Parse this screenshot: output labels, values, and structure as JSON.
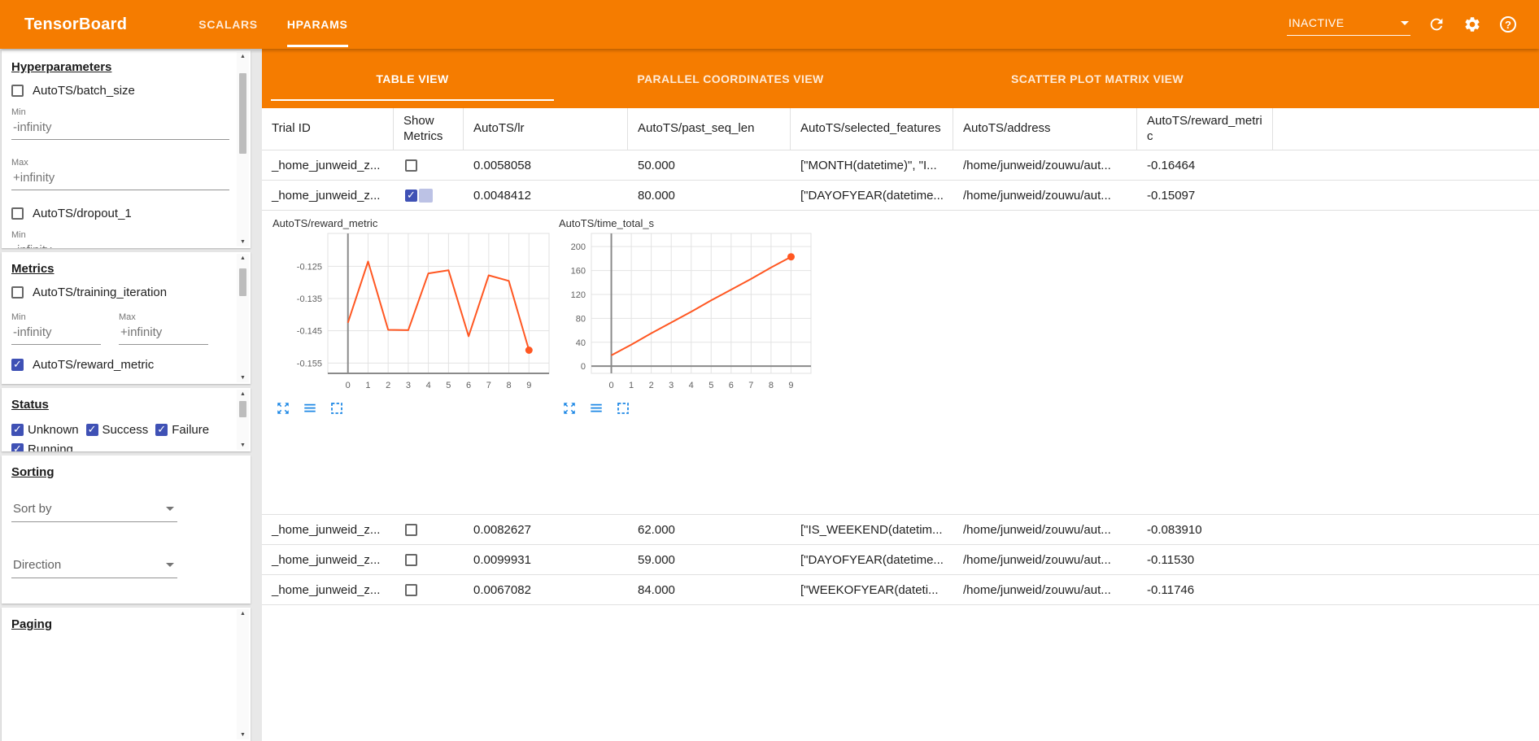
{
  "header": {
    "title": "TensorBoard",
    "nav_tabs": [
      {
        "label": "SCALARS",
        "active": false
      },
      {
        "label": "HPARAMS",
        "active": true
      }
    ],
    "status_select": {
      "value": "INACTIVE"
    }
  },
  "sidebar": {
    "labels": {
      "min": "Min",
      "max": "Max"
    },
    "hyperparameters": {
      "title": "Hyperparameters",
      "items": [
        {
          "label": "AutoTS/batch_size",
          "checked": false,
          "min": "-infinity",
          "max": "+infinity"
        },
        {
          "label": "AutoTS/dropout_1",
          "checked": false,
          "min": "-infinity"
        }
      ]
    },
    "metrics": {
      "title": "Metrics",
      "items": [
        {
          "label": "AutoTS/training_iteration",
          "checked": false,
          "min": "-infinity",
          "max": "+infinity"
        },
        {
          "label": "AutoTS/reward_metric",
          "checked": true
        }
      ]
    },
    "status": {
      "title": "Status",
      "items": [
        {
          "label": "Unknown",
          "checked": true
        },
        {
          "label": "Success",
          "checked": true
        },
        {
          "label": "Failure",
          "checked": true
        },
        {
          "label": "Running",
          "checked": true
        }
      ]
    },
    "sorting": {
      "title": "Sorting",
      "sort_by_label": "Sort by",
      "direction_label": "Direction"
    },
    "paging": {
      "title": "Paging"
    }
  },
  "main": {
    "view_tabs": [
      {
        "label": "TABLE VIEW",
        "active": true
      },
      {
        "label": "PARALLEL COORDINATES VIEW",
        "active": false
      },
      {
        "label": "SCATTER PLOT MATRIX VIEW",
        "active": false
      }
    ],
    "table": {
      "columns": [
        {
          "label": "Trial ID"
        },
        {
          "label": "Show Metrics"
        },
        {
          "label": "AutoTS/lr"
        },
        {
          "label": "AutoTS/past_seq_len"
        },
        {
          "label": "AutoTS/selected_features"
        },
        {
          "label": "AutoTS/address"
        },
        {
          "label": "AutoTS/reward_metric"
        }
      ],
      "rows": [
        {
          "trial_id": "_home_junweid_z...",
          "show_metrics": false,
          "lr": "0.0058058",
          "past_seq_len": "50.000",
          "selected_features": "[\"MONTH(datetime)\", \"I...",
          "address": "/home/junweid/zouwu/aut...",
          "reward_metric": "-0.16464"
        },
        {
          "trial_id": "_home_junweid_z...",
          "show_metrics": true,
          "lr": "0.0048412",
          "past_seq_len": "80.000",
          "selected_features": "[\"DAYOFYEAR(datetime...",
          "address": "/home/junweid/zouwu/aut...",
          "reward_metric": "-0.15097"
        },
        {
          "trial_id": "_home_junweid_z...",
          "show_metrics": false,
          "lr": "0.0082627",
          "past_seq_len": "62.000",
          "selected_features": "[\"IS_WEEKEND(datetim...",
          "address": "/home/junweid/zouwu/aut...",
          "reward_metric": "-0.083910"
        },
        {
          "trial_id": "_home_junweid_z...",
          "show_metrics": false,
          "lr": "0.0099931",
          "past_seq_len": "59.000",
          "selected_features": "[\"DAYOFYEAR(datetime...",
          "address": "/home/junweid/zouwu/aut...",
          "reward_metric": "-0.11530"
        },
        {
          "trial_id": "_home_junweid_z...",
          "show_metrics": false,
          "lr": "0.0067082",
          "past_seq_len": "84.000",
          "selected_features": "[\"WEEKOFYEAR(dateti...",
          "address": "/home/junweid/zouwu/aut...",
          "reward_metric": "-0.11746"
        }
      ]
    }
  },
  "colors": {
    "brand_orange": "#f57c00",
    "accent_blue": "#3f51b5",
    "chart_line": "#ff5722",
    "icon_blue": "#1e88e5"
  },
  "chart_data": [
    {
      "type": "line",
      "title": "AutoTS/reward_metric",
      "x": [
        0,
        1,
        2,
        3,
        4,
        5,
        6,
        7,
        8,
        9
      ],
      "values": [
        -0.1425,
        -0.1235,
        -0.1447,
        -0.1448,
        -0.1272,
        -0.1262,
        -0.1467,
        -0.1278,
        -0.1295,
        -0.151
      ],
      "xticks": [
        0,
        1,
        2,
        3,
        4,
        5,
        6,
        7,
        8,
        9
      ],
      "ytick_values": [
        -0.125,
        -0.135,
        -0.145,
        -0.155
      ],
      "ytick_labels": [
        "-0.125",
        "-0.135",
        "-0.145",
        "-0.155"
      ],
      "ylim": [
        -0.1582,
        -0.1148
      ],
      "xlim": [
        -1,
        10
      ],
      "line_color": "#ff5722",
      "grid": true,
      "legend": "none",
      "endpoint_dot": true
    },
    {
      "type": "line",
      "title": "AutoTS/time_total_s",
      "x": [
        0,
        1,
        2,
        3,
        4,
        5,
        6,
        7,
        8,
        9
      ],
      "values": [
        18,
        36,
        55,
        73,
        91,
        110,
        128,
        146,
        165,
        183
      ],
      "xticks": [
        0,
        1,
        2,
        3,
        4,
        5,
        6,
        7,
        8,
        9
      ],
      "ytick_values": [
        0,
        40,
        80,
        120,
        160,
        200
      ],
      "ytick_labels": [
        "0",
        "40",
        "80",
        "120",
        "160",
        "200"
      ],
      "ylim": [
        -12,
        222
      ],
      "xlim": [
        -1,
        10
      ],
      "line_color": "#ff5722",
      "grid": true,
      "legend": "none",
      "endpoint_dot": true
    }
  ]
}
